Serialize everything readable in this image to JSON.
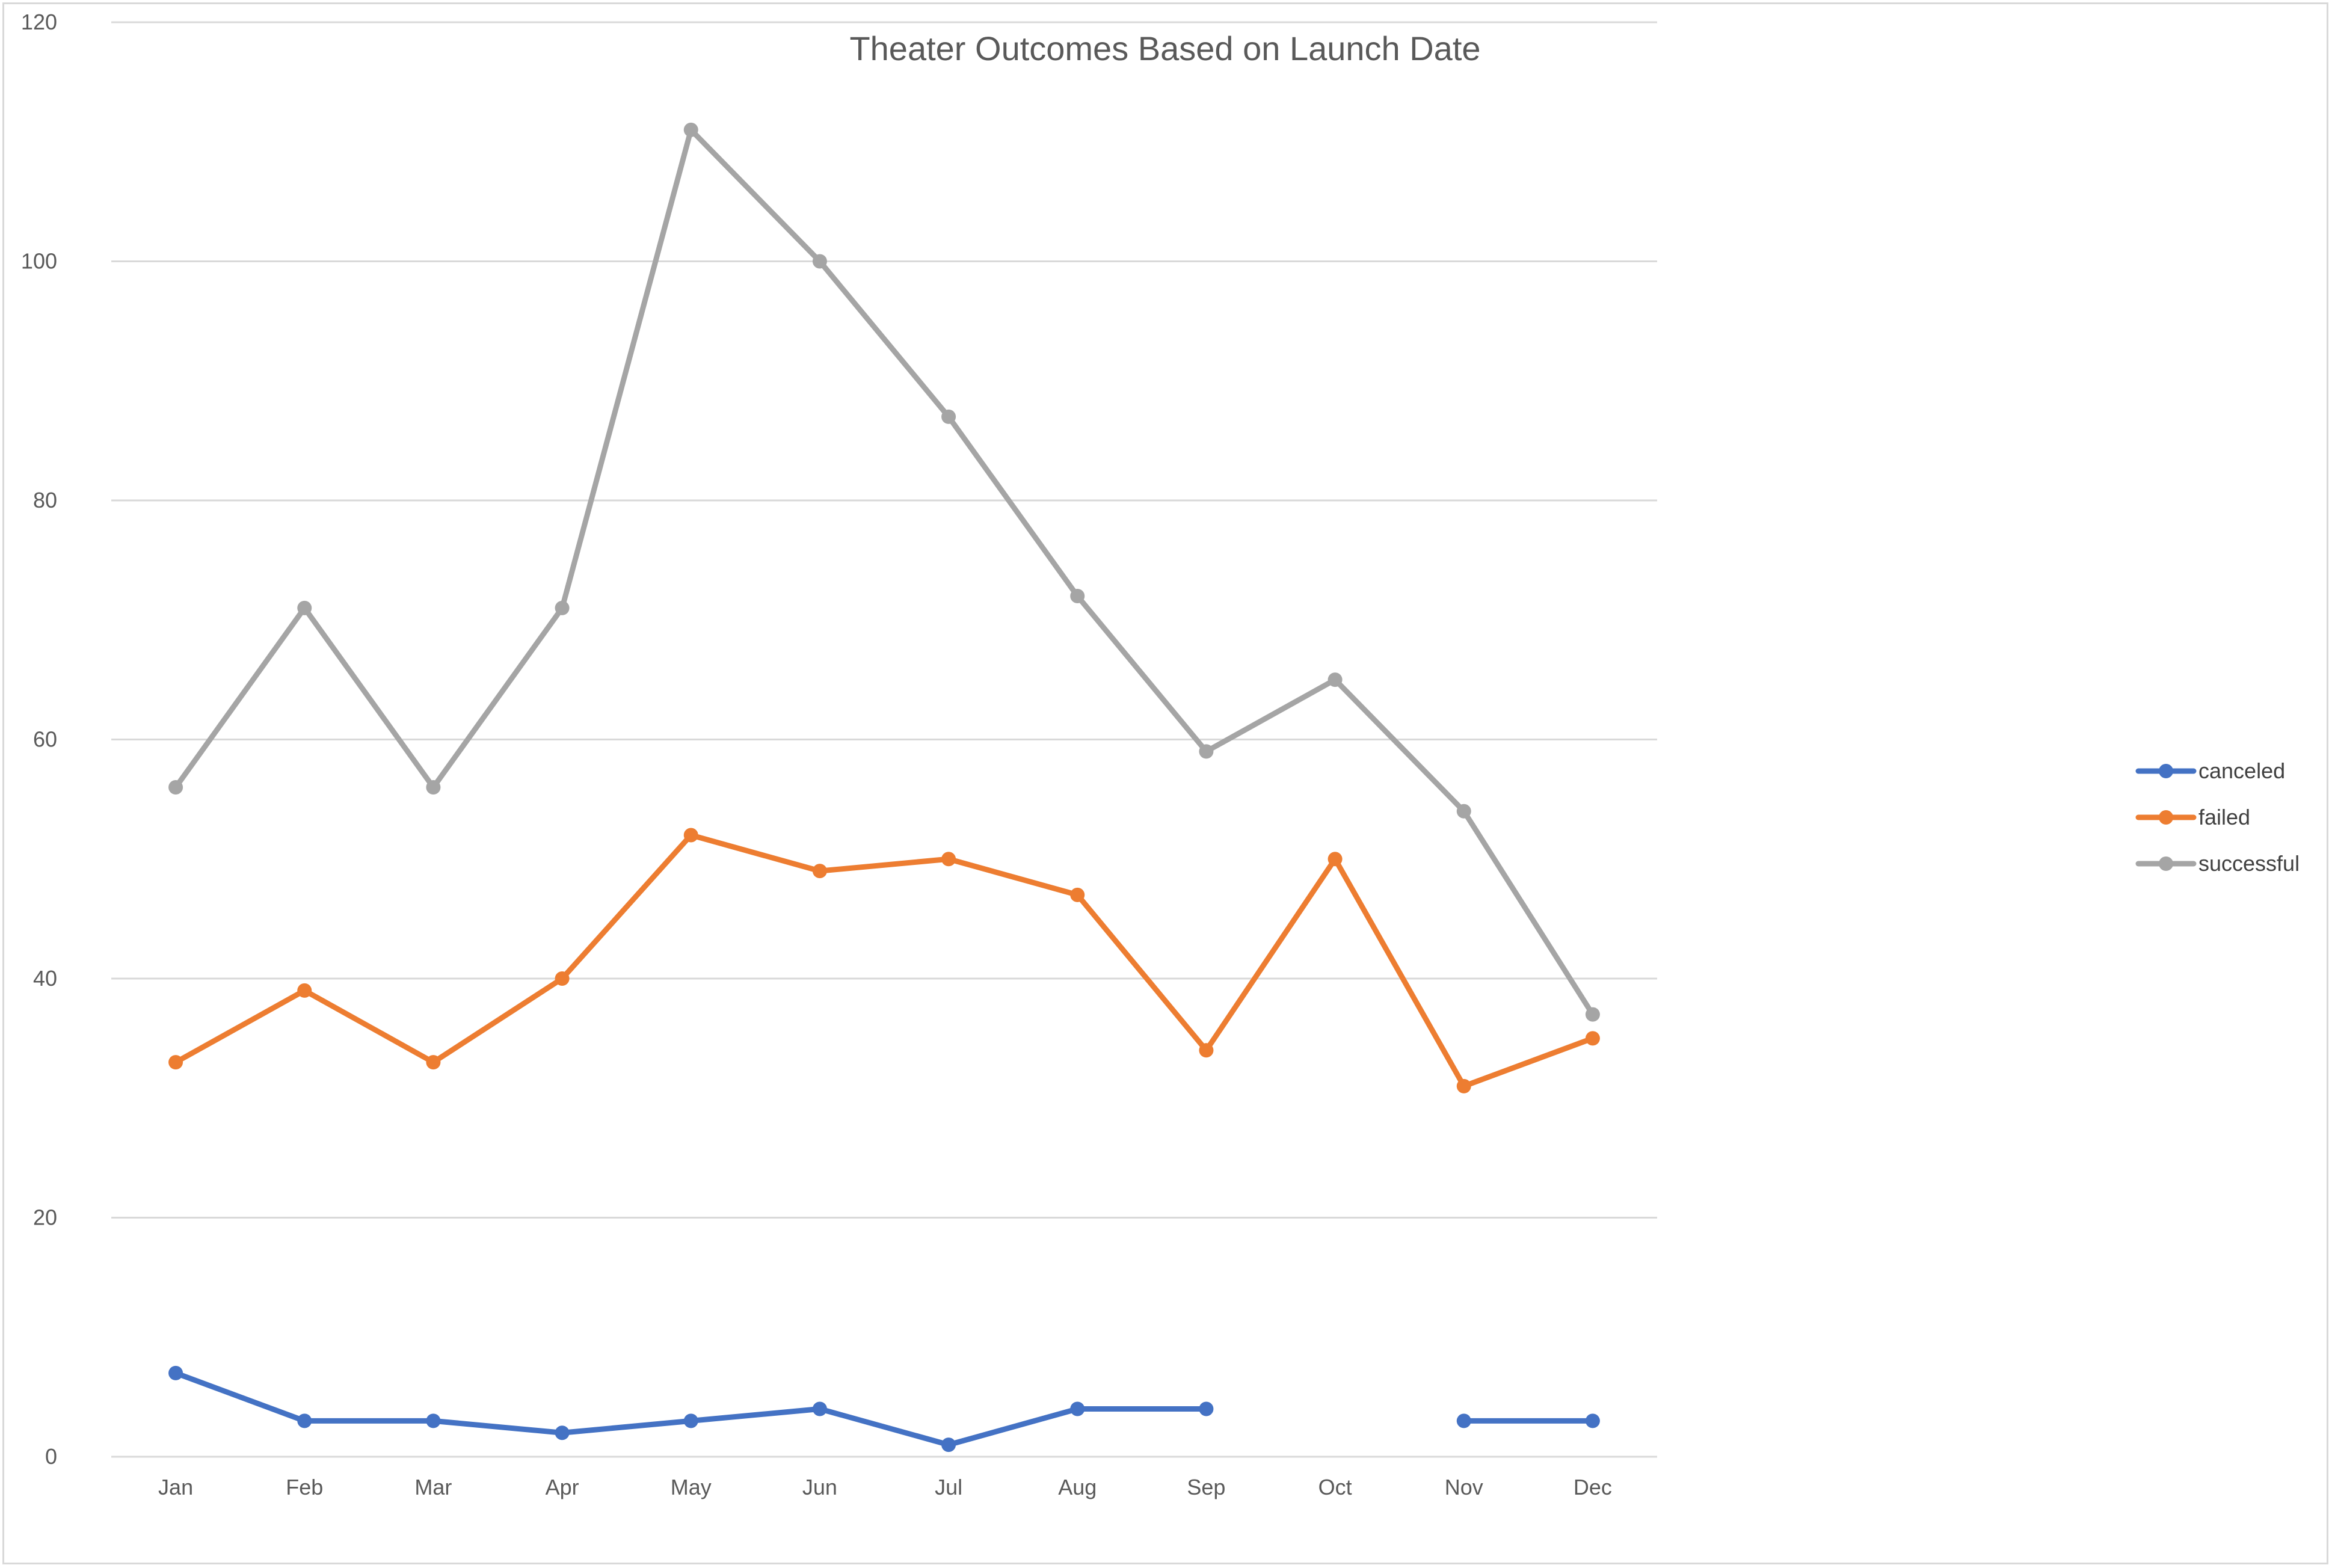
{
  "chart_data": {
    "type": "line",
    "title": "Theater Outcomes Based on Launch Date",
    "xlabel": "",
    "ylabel": "",
    "categories": [
      "Jan",
      "Feb",
      "Mar",
      "Apr",
      "May",
      "Jun",
      "Jul",
      "Aug",
      "Sep",
      "Oct",
      "Nov",
      "Dec"
    ],
    "ylim": [
      0,
      120
    ],
    "yticks": [
      0,
      20,
      40,
      60,
      80,
      100,
      120
    ],
    "grid": true,
    "legend_position": "right",
    "series": [
      {
        "name": "canceled",
        "color": "#4472c4",
        "values": [
          7,
          3,
          3,
          2,
          3,
          4,
          1,
          4,
          4,
          null,
          3,
          3
        ]
      },
      {
        "name": "failed",
        "color": "#ed7d31",
        "values": [
          33,
          39,
          33,
          40,
          52,
          49,
          50,
          47,
          34,
          50,
          31,
          35
        ]
      },
      {
        "name": "successful",
        "color": "#a5a5a5",
        "values": [
          56,
          71,
          56,
          71,
          111,
          100,
          87,
          72,
          59,
          65,
          54,
          37
        ]
      }
    ]
  }
}
